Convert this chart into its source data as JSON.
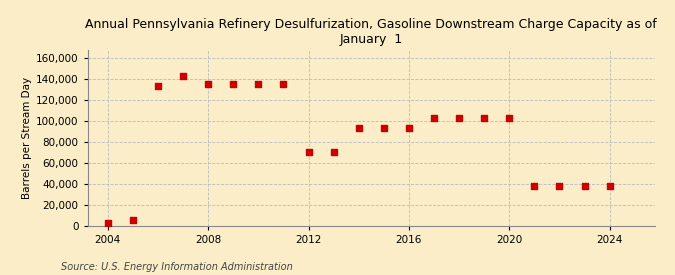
{
  "title": "Annual Pennsylvania Refinery Desulfurization, Gasoline Downstream Charge Capacity as of\nJanuary  1",
  "ylabel": "Barrels per Stream Day",
  "source": "Source: U.S. Energy Information Administration",
  "background_color": "#faedc8",
  "years": [
    2004,
    2005,
    2006,
    2007,
    2008,
    2009,
    2010,
    2011,
    2012,
    2013,
    2014,
    2015,
    2016,
    2017,
    2018,
    2019,
    2020,
    2021,
    2022,
    2023,
    2024
  ],
  "values": [
    2000,
    5000,
    133000,
    143000,
    135000,
    135000,
    135000,
    135000,
    70000,
    70000,
    93000,
    93000,
    93000,
    103000,
    103000,
    103000,
    103000,
    38000,
    38000,
    38000,
    38000
  ],
  "marker_color": "#cc0000",
  "marker_size": 18,
  "xlim": [
    2003.2,
    2025.8
  ],
  "ylim": [
    0,
    168000
  ],
  "yticks": [
    0,
    20000,
    40000,
    60000,
    80000,
    100000,
    120000,
    140000,
    160000
  ],
  "xticks": [
    2004,
    2008,
    2012,
    2016,
    2020,
    2024
  ],
  "grid_color": "#bbbbbb",
  "title_fontsize": 9,
  "axis_fontsize": 7.5,
  "source_fontsize": 7
}
